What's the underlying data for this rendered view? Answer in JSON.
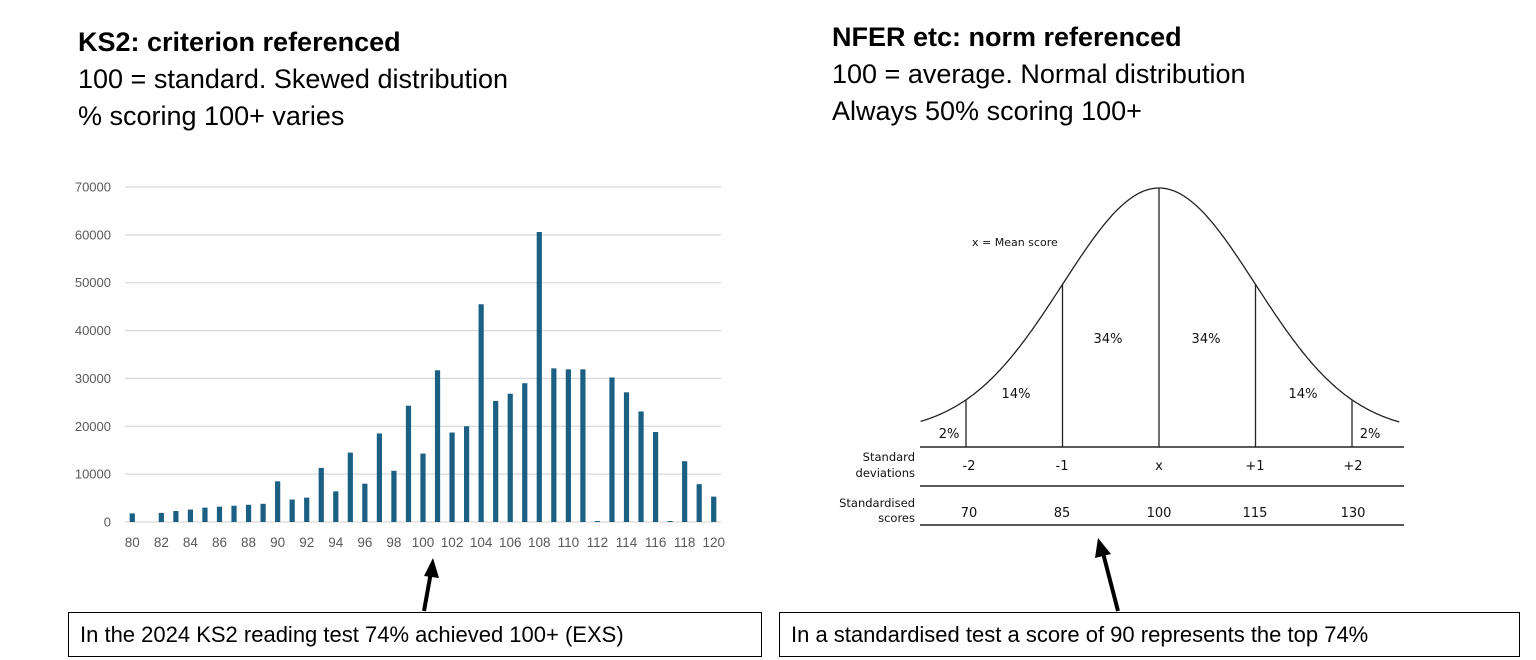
{
  "left_heading": {
    "title": "KS2: criterion referenced",
    "line1": "100 = standard. Skewed distribution",
    "line2": "% scoring 100+ varies"
  },
  "right_heading": {
    "title": "NFER etc: norm referenced",
    "line1": "100 = average. Normal distribution",
    "line2": "Always 50% scoring 100+"
  },
  "chart_data": {
    "type": "bar",
    "title": "",
    "xlabel": "",
    "ylabel": "",
    "ylim": [
      0,
      70000
    ],
    "yticks": [
      "0",
      "10000",
      "20000",
      "30000",
      "40000",
      "50000",
      "60000",
      "70000"
    ],
    "grid": true,
    "bar_color": "#1b5f82",
    "xtick_labels": [
      "80",
      "82",
      "84",
      "86",
      "88",
      "90",
      "92",
      "94",
      "96",
      "98",
      "100",
      "102",
      "104",
      "106",
      "108",
      "110",
      "112",
      "114",
      "116",
      "118",
      "120"
    ],
    "categories": [
      80,
      81,
      82,
      83,
      84,
      85,
      86,
      87,
      88,
      89,
      90,
      91,
      92,
      93,
      94,
      95,
      96,
      97,
      98,
      99,
      100,
      101,
      102,
      103,
      104,
      105,
      106,
      107,
      108,
      109,
      110,
      111,
      112,
      113,
      114,
      115,
      116,
      117,
      118,
      119,
      120
    ],
    "values": [
      1800,
      0,
      1900,
      2300,
      2600,
      3000,
      3200,
      3400,
      3600,
      3800,
      8500,
      4700,
      5100,
      11300,
      6400,
      14500,
      8000,
      18500,
      10700,
      24300,
      14300,
      31700,
      18700,
      20000,
      45500,
      25300,
      26800,
      29000,
      60600,
      32100,
      31900,
      31900,
      200,
      30200,
      27100,
      23100,
      18800,
      200,
      12700,
      7900,
      5300
    ]
  },
  "normal_diagram": {
    "mean_label": "x = Mean score",
    "segment_percents": [
      "2%",
      "14%",
      "34%",
      "34%",
      "14%",
      "2%"
    ],
    "sd_row_label": [
      "Standard",
      "deviations"
    ],
    "sd_values": [
      "-2",
      "-1",
      "x",
      "+1",
      "+2"
    ],
    "score_row_label": [
      "Standardised",
      "scores"
    ],
    "score_values": [
      "70",
      "85",
      "100",
      "115",
      "130"
    ]
  },
  "callouts": {
    "left": "In the 2024 KS2 reading test 74% achieved 100+ (EXS)",
    "right": "In a standardised test a score of 90 represents the top 74%"
  }
}
